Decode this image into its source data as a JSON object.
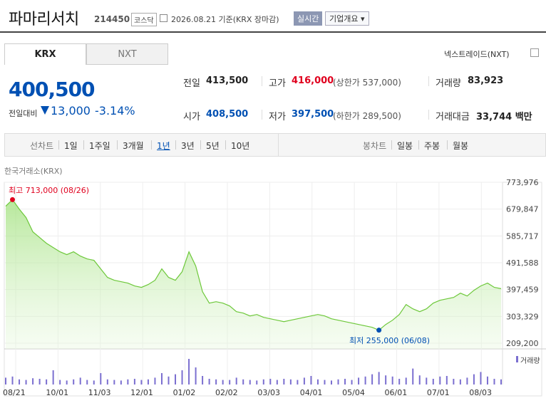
{
  "header": {
    "company_name": "파마리서치",
    "code": "214450",
    "market": "코스닥",
    "date_text": "2026.08.21 기준(KRX 장마감)",
    "live_label": "실시간",
    "info_label": "기업개요 ▾"
  },
  "tabs": [
    "KRX",
    "NXT"
  ],
  "nxt_label": "넥스트레이드(NXT)",
  "quote": {
    "price": "400,500",
    "change_label": "전일대비",
    "change": "13,000",
    "change_pct": "-3.14%",
    "prev_close_label": "전일",
    "prev_close": "413,500",
    "high_label": "고가",
    "high": "416,000",
    "upper_limit": "(상한가 537,000)",
    "volume_label": "거래량",
    "volume": "83,923",
    "open_label": "시가",
    "open": "408,500",
    "low_label": "저가",
    "low": "397,500",
    "lower_limit": "(하한가 289,500)",
    "amount_label": "거래대금",
    "amount": "33,744 백만"
  },
  "periods": {
    "line_label": "선차트",
    "line_items": [
      "1일",
      "1주일",
      "3개월",
      "1년",
      "3년",
      "5년",
      "10년"
    ],
    "selected": "1년",
    "candle_label": "봉차트",
    "candle_items": [
      "일봉",
      "주봉",
      "월봉"
    ]
  },
  "chart_source": "한국거래소(KRX)",
  "volume_legend": "거래량",
  "colors": {
    "up": "#e0001e",
    "down": "#0050b3",
    "line": "#6dc83a",
    "volume": "#7b6fd0"
  },
  "chart_data": {
    "type": "area",
    "y_ticks": [
      "773,976",
      "679,847",
      "585,717",
      "491,588",
      "397,459",
      "303,329",
      "209,200"
    ],
    "ylim": [
      209200,
      773976
    ],
    "x_ticks": [
      "08/21",
      "10/01",
      "11/03",
      "12/01",
      "01/02",
      "02/02",
      "03/03",
      "04/01",
      "05/04",
      "06/01",
      "07/01",
      "08/03"
    ],
    "max_label": "최고 713,000 (08/26)",
    "min_label": "최저 255,000 (06/08)",
    "values": [
      690000,
      713000,
      680000,
      650000,
      600000,
      580000,
      560000,
      545000,
      530000,
      520000,
      530000,
      515000,
      505000,
      500000,
      470000,
      440000,
      430000,
      425000,
      420000,
      410000,
      405000,
      415000,
      430000,
      470000,
      440000,
      430000,
      460000,
      530000,
      480000,
      390000,
      350000,
      355000,
      350000,
      340000,
      320000,
      315000,
      305000,
      310000,
      300000,
      295000,
      290000,
      285000,
      290000,
      295000,
      300000,
      305000,
      310000,
      305000,
      295000,
      290000,
      285000,
      280000,
      275000,
      270000,
      265000,
      255000,
      275000,
      290000,
      310000,
      345000,
      330000,
      320000,
      330000,
      350000,
      360000,
      365000,
      370000,
      385000,
      375000,
      395000,
      410000,
      420000,
      405000,
      400500
    ],
    "volumes": [
      12,
      14,
      9,
      8,
      11,
      10,
      9,
      25,
      8,
      7,
      9,
      12,
      8,
      7,
      20,
      9,
      8,
      7,
      9,
      10,
      8,
      9,
      12,
      20,
      14,
      18,
      25,
      45,
      30,
      15,
      10,
      9,
      8,
      8,
      12,
      9,
      8,
      7,
      9,
      10,
      8,
      10,
      9,
      8,
      12,
      15,
      9,
      8,
      7,
      9,
      10,
      8,
      12,
      14,
      18,
      22,
      16,
      14,
      10,
      12,
      28,
      16,
      12,
      10,
      14,
      15,
      10,
      9,
      12,
      18,
      22,
      14,
      10,
      9
    ]
  }
}
